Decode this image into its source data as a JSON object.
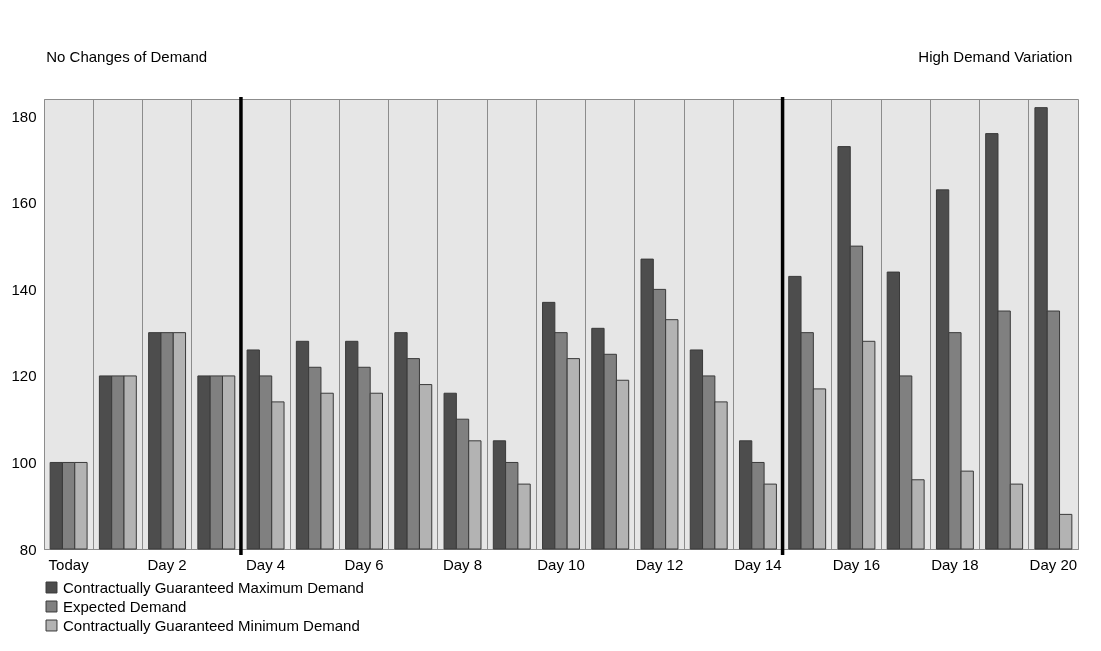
{
  "chart_data": {
    "type": "bar",
    "categories": [
      "Today",
      null,
      "Day 2",
      null,
      "Day 4",
      null,
      "Day 6",
      null,
      "Day 8",
      null,
      "Day 10",
      null,
      "Day 12",
      null,
      "Day 14",
      null,
      "Day 16",
      null,
      "Day 18",
      null,
      "Day 20"
    ],
    "series": [
      {
        "name": "Contractually Guaranteed Maximum Demand",
        "color": "#4d4d4d",
        "values": [
          100,
          120,
          130,
          120,
          126,
          128,
          128,
          130,
          116,
          105,
          137,
          131,
          147,
          126,
          105,
          143,
          173,
          144,
          163,
          176,
          182
        ]
      },
      {
        "name": "Expected Demand",
        "color": "#808080",
        "values": [
          100,
          120,
          130,
          120,
          120,
          122,
          122,
          124,
          110,
          100,
          130,
          125,
          140,
          120,
          100,
          130,
          150,
          120,
          130,
          135,
          135
        ]
      },
      {
        "name": "Contractually Guaranteed Minimum Demand",
        "color": "#b3b3b3",
        "values": [
          100,
          120,
          130,
          120,
          114,
          116,
          116,
          118,
          105,
          95,
          124,
          119,
          133,
          114,
          95,
          117,
          128,
          96,
          98,
          95,
          88
        ]
      }
    ],
    "ylim": [
      80,
      184
    ],
    "yticks": [
      80,
      100,
      120,
      140,
      160,
      180
    ],
    "grid": "x",
    "legend": "bottom",
    "annotations": [
      "No Changes of Demand",
      "High Demand Variation"
    ]
  }
}
